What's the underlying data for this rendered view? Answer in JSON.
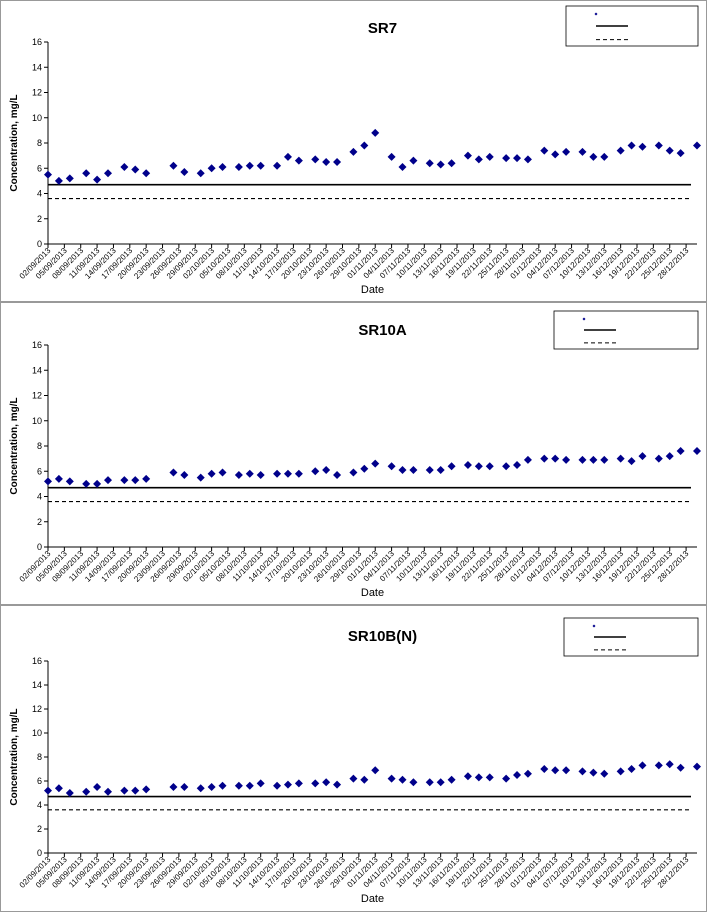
{
  "page": {
    "background": "#ffffff",
    "border_color": "#999999"
  },
  "chart_data": [
    {
      "type": "scatter",
      "title": "SR7",
      "xlabel": "Date",
      "ylabel": "Concentration, mg/L",
      "ylim": [
        0,
        16
      ],
      "yticks": [
        0,
        2,
        4,
        6,
        8,
        10,
        12,
        14,
        16
      ],
      "x_range": [
        "2013-09-02",
        "2013-12-30"
      ],
      "x_tick_labels": [
        "02/09/2013",
        "05/09/2013",
        "08/09/2013",
        "11/09/2013",
        "14/09/2013",
        "17/09/2013",
        "20/09/2013",
        "23/09/2013",
        "26/09/2013",
        "29/09/2013",
        "02/10/2013",
        "05/10/2013",
        "08/10/2013",
        "11/10/2013",
        "14/10/2013",
        "17/10/2013",
        "20/10/2013",
        "23/10/2013",
        "26/10/2013",
        "29/10/2013",
        "01/11/2013",
        "04/11/2013",
        "07/11/2013",
        "10/11/2013",
        "13/11/2013",
        "16/11/2013",
        "19/11/2013",
        "22/11/2013",
        "25/11/2013",
        "28/11/2013",
        "01/12/2013",
        "04/12/2013",
        "07/12/2013",
        "10/12/2013",
        "13/12/2013",
        "16/12/2013",
        "19/12/2013",
        "22/12/2013",
        "25/12/2013",
        "28/12/2013"
      ],
      "grid": false,
      "legend": "top-right",
      "marker_color": "#00008b",
      "series": [
        {
          "x": [
            "2013-09-02",
            "2013-09-04",
            "2013-09-06",
            "2013-09-09",
            "2013-09-11",
            "2013-09-13",
            "2013-09-16",
            "2013-09-18",
            "2013-09-20",
            "2013-09-25",
            "2013-09-27",
            "2013-09-30",
            "2013-10-02",
            "2013-10-04",
            "2013-10-07",
            "2013-10-09",
            "2013-10-11",
            "2013-10-14",
            "2013-10-16",
            "2013-10-18",
            "2013-10-21",
            "2013-10-23",
            "2013-10-25",
            "2013-10-28",
            "2013-10-30",
            "2013-11-01",
            "2013-11-04",
            "2013-11-06",
            "2013-11-08",
            "2013-11-11",
            "2013-11-13",
            "2013-11-15",
            "2013-11-18",
            "2013-11-20",
            "2013-11-22",
            "2013-11-25",
            "2013-11-27",
            "2013-11-29",
            "2013-12-02",
            "2013-12-04",
            "2013-12-06",
            "2013-12-09",
            "2013-12-11",
            "2013-12-13",
            "2013-12-16",
            "2013-12-18",
            "2013-12-20",
            "2013-12-23",
            "2013-12-25",
            "2013-12-27",
            "2013-12-30"
          ],
          "values": [
            5.5,
            5.0,
            5.2,
            5.6,
            5.1,
            5.6,
            6.1,
            5.9,
            5.6,
            6.2,
            5.7,
            5.6,
            6.0,
            6.1,
            6.1,
            6.2,
            6.2,
            6.2,
            6.9,
            6.6,
            6.7,
            6.5,
            6.5,
            7.3,
            7.8,
            8.8,
            6.9,
            6.1,
            6.6,
            6.4,
            6.3,
            6.4,
            7.0,
            6.7,
            6.9,
            6.8,
            6.8,
            6.7,
            7.4,
            7.1,
            7.3,
            7.3,
            6.9,
            6.9,
            7.4,
            7.8,
            7.7,
            7.8,
            7.4,
            7.2,
            7.8
          ]
        }
      ],
      "reference_lines": [
        {
          "style": "solid",
          "value": 4.7
        },
        {
          "style": "dashed",
          "value": 3.6
        }
      ]
    },
    {
      "type": "scatter",
      "title": "SR10A",
      "xlabel": "Date",
      "ylabel": "Concentration, mg/L",
      "ylim": [
        0,
        16
      ],
      "yticks": [
        0,
        2,
        4,
        6,
        8,
        10,
        12,
        14,
        16
      ],
      "x_range": [
        "2013-09-02",
        "2013-12-30"
      ],
      "x_tick_labels": [
        "02/09/2013",
        "05/09/2013",
        "08/09/2013",
        "11/09/2013",
        "14/09/2013",
        "17/09/2013",
        "20/09/2013",
        "23/09/2013",
        "26/09/2013",
        "29/09/2013",
        "02/10/2013",
        "05/10/2013",
        "08/10/2013",
        "11/10/2013",
        "14/10/2013",
        "17/10/2013",
        "20/10/2013",
        "23/10/2013",
        "26/10/2013",
        "29/10/2013",
        "01/11/2013",
        "04/11/2013",
        "07/11/2013",
        "10/11/2013",
        "13/11/2013",
        "16/11/2013",
        "19/11/2013",
        "22/11/2013",
        "25/11/2013",
        "28/11/2013",
        "01/12/2013",
        "04/12/2013",
        "07/12/2013",
        "10/12/2013",
        "13/12/2013",
        "16/12/2013",
        "19/12/2013",
        "22/12/2013",
        "25/12/2013",
        "28/12/2013"
      ],
      "grid": false,
      "legend": "top-right",
      "marker_color": "#00008b",
      "series": [
        {
          "x": [
            "2013-09-02",
            "2013-09-04",
            "2013-09-06",
            "2013-09-09",
            "2013-09-11",
            "2013-09-13",
            "2013-09-16",
            "2013-09-18",
            "2013-09-20",
            "2013-09-25",
            "2013-09-27",
            "2013-09-30",
            "2013-10-02",
            "2013-10-04",
            "2013-10-07",
            "2013-10-09",
            "2013-10-11",
            "2013-10-14",
            "2013-10-16",
            "2013-10-18",
            "2013-10-21",
            "2013-10-23",
            "2013-10-25",
            "2013-10-28",
            "2013-10-30",
            "2013-11-01",
            "2013-11-04",
            "2013-11-06",
            "2013-11-08",
            "2013-11-11",
            "2013-11-13",
            "2013-11-15",
            "2013-11-18",
            "2013-11-20",
            "2013-11-22",
            "2013-11-25",
            "2013-11-27",
            "2013-11-29",
            "2013-12-02",
            "2013-12-04",
            "2013-12-06",
            "2013-12-09",
            "2013-12-11",
            "2013-12-13",
            "2013-12-16",
            "2013-12-18",
            "2013-12-20",
            "2013-12-23",
            "2013-12-25",
            "2013-12-27",
            "2013-12-30"
          ],
          "values": [
            5.2,
            5.4,
            5.2,
            5.0,
            5.0,
            5.3,
            5.3,
            5.3,
            5.4,
            5.9,
            5.7,
            5.5,
            5.8,
            5.9,
            5.7,
            5.8,
            5.7,
            5.8,
            5.8,
            5.8,
            6.0,
            6.1,
            5.7,
            5.9,
            6.2,
            6.6,
            6.4,
            6.1,
            6.1,
            6.1,
            6.1,
            6.4,
            6.5,
            6.4,
            6.4,
            6.4,
            6.5,
            6.9,
            7.0,
            7.0,
            6.9,
            6.9,
            6.9,
            6.9,
            7.0,
            6.8,
            7.2,
            7.0,
            7.2,
            7.6,
            7.6
          ]
        }
      ],
      "reference_lines": [
        {
          "style": "solid",
          "value": 4.7
        },
        {
          "style": "dashed",
          "value": 3.6
        }
      ]
    },
    {
      "type": "scatter",
      "title": "SR10B(N)",
      "xlabel": "Date",
      "ylabel": "Concentration, mg/L",
      "ylim": [
        0,
        16
      ],
      "yticks": [
        0,
        2,
        4,
        6,
        8,
        10,
        12,
        14,
        16
      ],
      "x_range": [
        "2013-09-02",
        "2013-12-30"
      ],
      "x_tick_labels": [
        "02/09/2013",
        "05/09/2013",
        "08/09/2013",
        "11/09/2013",
        "14/09/2013",
        "17/09/2013",
        "20/09/2013",
        "23/09/2013",
        "26/09/2013",
        "29/09/2013",
        "02/10/2013",
        "05/10/2013",
        "08/10/2013",
        "11/10/2013",
        "14/10/2013",
        "17/10/2013",
        "20/10/2013",
        "23/10/2013",
        "26/10/2013",
        "29/10/2013",
        "01/11/2013",
        "04/11/2013",
        "07/11/2013",
        "10/11/2013",
        "13/11/2013",
        "16/11/2013",
        "19/11/2013",
        "22/11/2013",
        "25/11/2013",
        "28/11/2013",
        "01/12/2013",
        "04/12/2013",
        "07/12/2013",
        "10/12/2013",
        "13/12/2013",
        "16/12/2013",
        "19/12/2013",
        "22/12/2013",
        "25/12/2013",
        "28/12/2013"
      ],
      "grid": false,
      "legend": "top-right",
      "marker_color": "#00008b",
      "series": [
        {
          "x": [
            "2013-09-02",
            "2013-09-04",
            "2013-09-06",
            "2013-09-09",
            "2013-09-11",
            "2013-09-13",
            "2013-09-16",
            "2013-09-18",
            "2013-09-20",
            "2013-09-25",
            "2013-09-27",
            "2013-09-30",
            "2013-10-02",
            "2013-10-04",
            "2013-10-07",
            "2013-10-09",
            "2013-10-11",
            "2013-10-14",
            "2013-10-16",
            "2013-10-18",
            "2013-10-21",
            "2013-10-23",
            "2013-10-25",
            "2013-10-28",
            "2013-10-30",
            "2013-11-01",
            "2013-11-04",
            "2013-11-06",
            "2013-11-08",
            "2013-11-11",
            "2013-11-13",
            "2013-11-15",
            "2013-11-18",
            "2013-11-20",
            "2013-11-22",
            "2013-11-25",
            "2013-11-27",
            "2013-11-29",
            "2013-12-02",
            "2013-12-04",
            "2013-12-06",
            "2013-12-09",
            "2013-12-11",
            "2013-12-13",
            "2013-12-16",
            "2013-12-18",
            "2013-12-20",
            "2013-12-23",
            "2013-12-25",
            "2013-12-27",
            "2013-12-30"
          ],
          "values": [
            5.2,
            5.4,
            5.0,
            5.1,
            5.5,
            5.1,
            5.2,
            5.2,
            5.3,
            5.5,
            5.5,
            5.4,
            5.5,
            5.6,
            5.6,
            5.6,
            5.8,
            5.6,
            5.7,
            5.8,
            5.8,
            5.9,
            5.7,
            6.2,
            6.1,
            6.9,
            6.2,
            6.1,
            5.9,
            5.9,
            5.9,
            6.1,
            6.4,
            6.3,
            6.3,
            6.2,
            6.5,
            6.6,
            7.0,
            6.9,
            6.9,
            6.8,
            6.7,
            6.6,
            6.8,
            7.0,
            7.3,
            7.3,
            7.4,
            7.1,
            7.2
          ]
        }
      ],
      "reference_lines": [
        {
          "style": "solid",
          "value": 4.7
        },
        {
          "style": "dashed",
          "value": 3.6
        }
      ]
    }
  ]
}
